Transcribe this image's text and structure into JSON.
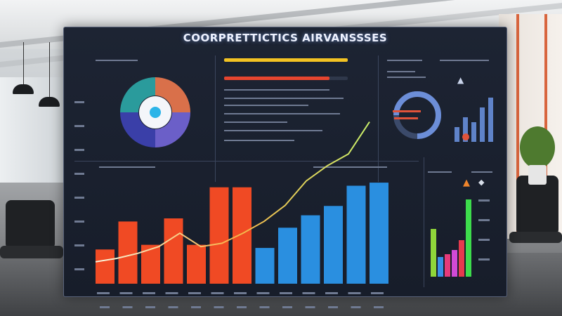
{
  "dashboard": {
    "title": "COORPRETTICTICS AIRVANSSSES"
  },
  "main_chart": {
    "bar_values": [
      2.2,
      4.0,
      2.5,
      4.2,
      2.5,
      6.2,
      6.2,
      2.3,
      3.6,
      4.4,
      5.0,
      6.3,
      6.5
    ],
    "bar_colors": [
      "#f04a24",
      "#f04a24",
      "#f04a24",
      "#f04a24",
      "#f04a24",
      "#f04a24",
      "#f04a24",
      "#2a8fe0",
      "#2a8fe0",
      "#2a8fe0",
      "#2a8fe0",
      "#2a8fe0",
      "#2a8fe0"
    ],
    "line_values": [
      2.6,
      3.0,
      3.6,
      4.4,
      6.0,
      4.4,
      4.8,
      6.0,
      7.4,
      9.3,
      12.2,
      14.0,
      15.4,
      19.2
    ]
  },
  "donut": {
    "segments": [
      {
        "value": 25,
        "color": "#d9704a"
      },
      {
        "value": 25,
        "color": "#6b5fc8"
      },
      {
        "value": 25,
        "color": "#3a3fa8"
      },
      {
        "value": 25,
        "color": "#2a9b9c"
      }
    ],
    "center_icon": "drop-icon"
  },
  "progress_bars": [
    {
      "fill": 1.0,
      "color": "#f3c323"
    },
    {
      "fill": 0.85,
      "color": "#e6452f"
    }
  ],
  "mini_bars": {
    "values": [
      3.0,
      5.0,
      4.0,
      7.0,
      9.0
    ],
    "color": "#5f83c9"
  },
  "right_bars": {
    "values": [
      3.4,
      1.4,
      1.6,
      1.9,
      2.6,
      5.5
    ],
    "colors": [
      "#8fd63a",
      "#3a8ee6",
      "#e63a7a",
      "#d14ad6",
      "#e63a4e",
      "#3ddc4c"
    ]
  }
}
